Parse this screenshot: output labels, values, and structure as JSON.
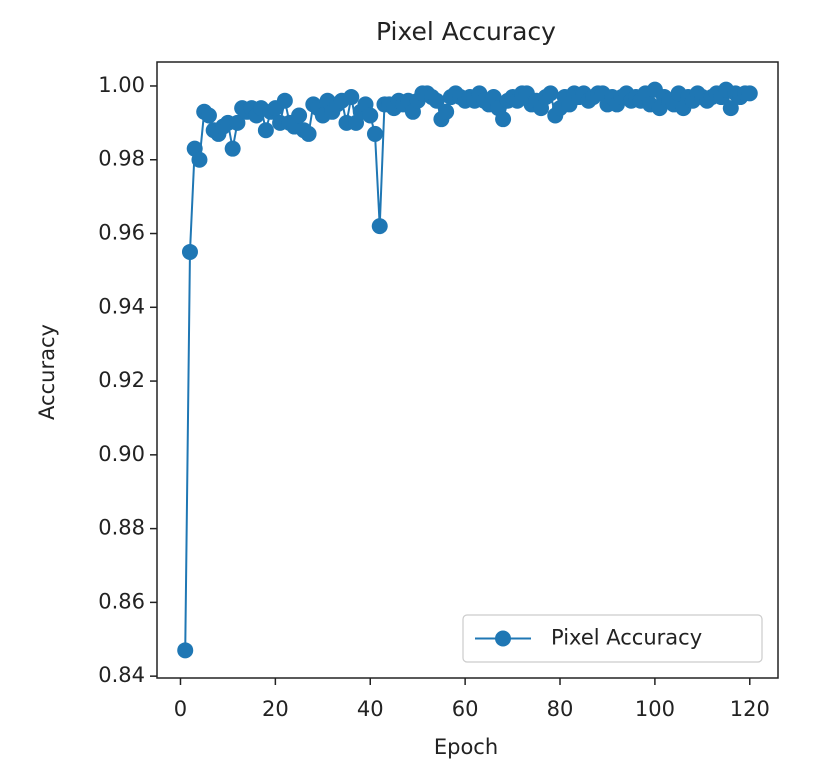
{
  "chart_data": {
    "type": "line",
    "title": "Pixel Accuracy",
    "xlabel": "Epoch",
    "ylabel": "Accuracy",
    "x": [
      1,
      2,
      3,
      4,
      5,
      6,
      7,
      8,
      9,
      10,
      11,
      12,
      13,
      14,
      15,
      16,
      17,
      18,
      19,
      20,
      21,
      22,
      23,
      24,
      25,
      26,
      27,
      28,
      29,
      30,
      31,
      32,
      33,
      34,
      35,
      36,
      37,
      38,
      39,
      40,
      41,
      42,
      43,
      44,
      45,
      46,
      47,
      48,
      49,
      50,
      51,
      52,
      53,
      54,
      55,
      56,
      57,
      58,
      59,
      60,
      61,
      62,
      63,
      64,
      65,
      66,
      67,
      68,
      69,
      70,
      71,
      72,
      73,
      74,
      75,
      76,
      77,
      78,
      79,
      80,
      81,
      82,
      83,
      84,
      85,
      86,
      87,
      88,
      89,
      90,
      91,
      92,
      93,
      94,
      95,
      96,
      97,
      98,
      99,
      100,
      101,
      102,
      103,
      104,
      105,
      106,
      107,
      108,
      109,
      110,
      111,
      112,
      113,
      114,
      115,
      116,
      117,
      118,
      119,
      120
    ],
    "series": [
      {
        "name": "Pixel Accuracy",
        "color": "#1f77b4",
        "marker": "o",
        "values": [
          0.847,
          0.955,
          0.983,
          0.98,
          0.993,
          0.992,
          0.988,
          0.987,
          0.989,
          0.99,
          0.983,
          0.99,
          0.994,
          0.993,
          0.994,
          0.992,
          0.994,
          0.988,
          0.993,
          0.994,
          0.99,
          0.996,
          0.99,
          0.989,
          0.992,
          0.988,
          0.987,
          0.995,
          0.994,
          0.992,
          0.996,
          0.993,
          0.995,
          0.996,
          0.99,
          0.997,
          0.99,
          0.993,
          0.995,
          0.992,
          0.987,
          0.962,
          0.995,
          0.995,
          0.994,
          0.996,
          0.995,
          0.996,
          0.993,
          0.996,
          0.998,
          0.998,
          0.997,
          0.996,
          0.991,
          0.993,
          0.997,
          0.998,
          0.997,
          0.996,
          0.997,
          0.996,
          0.998,
          0.996,
          0.995,
          0.997,
          0.994,
          0.991,
          0.996,
          0.997,
          0.996,
          0.998,
          0.998,
          0.995,
          0.996,
          0.994,
          0.997,
          0.998,
          0.992,
          0.994,
          0.997,
          0.995,
          0.998,
          0.997,
          0.998,
          0.996,
          0.997,
          0.998,
          0.998,
          0.995,
          0.997,
          0.995,
          0.997,
          0.998,
          0.996,
          0.997,
          0.996,
          0.998,
          0.995,
          0.999,
          0.994,
          0.997,
          0.996,
          0.995,
          0.998,
          0.994,
          0.997,
          0.996,
          0.998,
          0.997,
          0.996,
          0.997,
          0.998,
          0.997,
          0.999,
          0.994,
          0.998,
          0.997,
          0.998,
          0.998
        ]
      }
    ],
    "xlim": [
      -4.95,
      125.95
    ],
    "ylim": [
      0.8395,
      1.0065
    ],
    "xticks": [
      0,
      20,
      40,
      60,
      80,
      100,
      120
    ],
    "yticks": [
      0.84,
      0.86,
      0.88,
      {
        "value": 0.9,
        "label": "0.90"
      },
      0.92,
      0.94,
      0.96,
      0.98,
      {
        "value": 1,
        "label": "1.00"
      }
    ],
    "legend": "lower right",
    "grid": false
  }
}
